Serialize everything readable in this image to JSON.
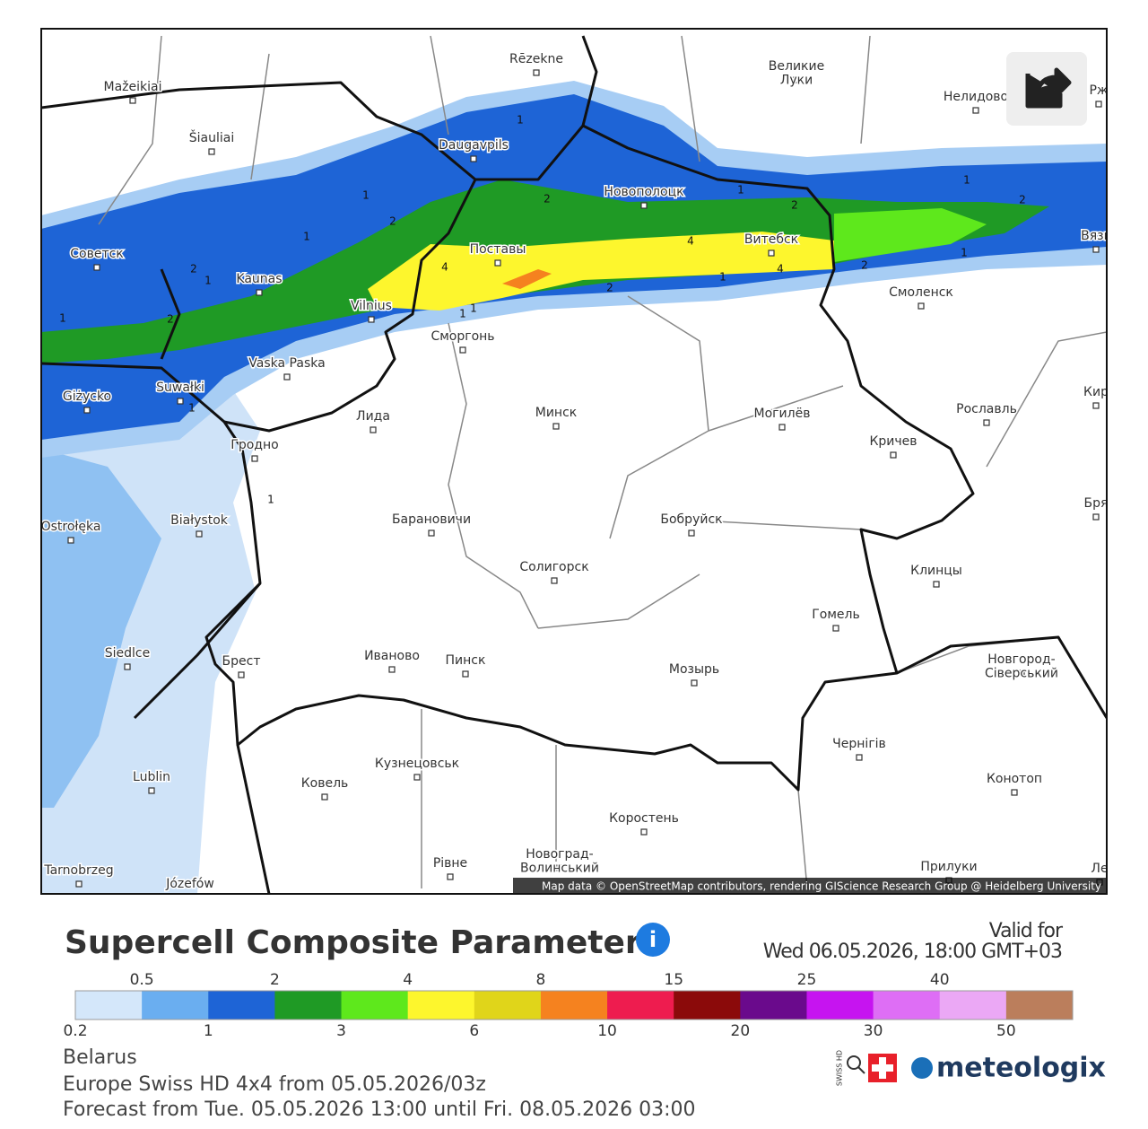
{
  "map": {
    "cities": [
      "Rēzekne",
      "Великие\nЛуки",
      "Mažeikiai",
      "Нелидово",
      "Šiauliai",
      "Daugavpils",
      "Новополоцк",
      "Советск",
      "Поставы",
      "Витебск",
      "Kaunas",
      "Смоленск",
      "Vilnius",
      "Сморгонь",
      "Vaska Paska",
      "Giżycko",
      "Suwałki",
      "Минск",
      "Могилёв",
      "Рославль",
      "Лида",
      "Кричев",
      "Гродно",
      "Białystok",
      "Барановичи",
      "Бобруйск",
      "Ostrołęka",
      "Солигорск",
      "Клинцы",
      "Гомель",
      "Siedlce",
      "Брест",
      "Иваново",
      "Пинск",
      "Мозырь",
      "Новгород-\nСіверський",
      "Чернігів",
      "Lublin",
      "Кузнецовськ",
      "Ковель",
      "Конотоп",
      "Коростень",
      "Новоград-\nВолинський",
      "Рівне",
      "Прилуки",
      "Tarnobrzeg",
      "Józefów",
      "Рж",
      "Вязь",
      "Кир",
      "Бря",
      "Ле"
    ],
    "contour_labels": [
      1,
      1,
      2,
      1,
      2,
      2,
      1,
      1,
      2,
      4,
      2,
      1,
      4,
      1,
      4,
      2,
      1,
      1,
      2,
      2,
      1,
      1,
      1,
      1
    ],
    "attribution": "Map data © OpenStreetMap contributors, rendering GIScience Research Group @ Heidelberg University"
  },
  "footer": {
    "title": "Supercell Composite Parameter",
    "valid_label": "Valid for",
    "valid_time": "Wed 06.05.2026, 18:00 GMT+03",
    "legend": {
      "thresholds": [
        0.2,
        0.5,
        1,
        2,
        3,
        4,
        6,
        8,
        10,
        15,
        20,
        25,
        30,
        40,
        50
      ],
      "colors": [
        "#d4e7fa",
        "#6aaef0",
        "#1e64d6",
        "#1f9a25",
        "#5ee81c",
        "#fdf62d",
        "#e0d51a",
        "#f5821f",
        "#ee1c4f",
        "#8b0a0a",
        "#6a0a8c",
        "#c614f0",
        "#de6ef5",
        "#eba8f5",
        "#bb7e5c"
      ]
    },
    "region": "Belarus",
    "model": "Europe Swiss HD 4x4 from 05.05.2026/03z",
    "forecast": "Forecast from Tue. 05.05.2026 13:00 until Fri. 08.05.2026 03:00",
    "logo_small": "SWISS HD",
    "logo": "meteologix"
  }
}
